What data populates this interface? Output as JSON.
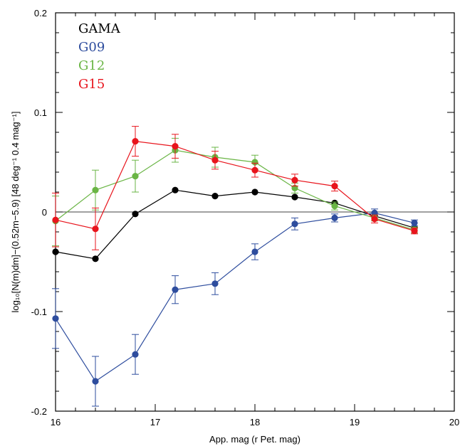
{
  "chart_data": {
    "type": "line",
    "title": "",
    "xlabel": "App. mag (r Pet. mag)",
    "ylabel": "log₁₀[N(m)dm]−(0.52m−5.9) [48 deg⁻¹ 0.4 mag⁻¹]",
    "xlim": [
      16,
      20
    ],
    "ylim": [
      -0.2,
      0.2
    ],
    "x_ticks": [
      16,
      17,
      18,
      19,
      20
    ],
    "x_tick_labels": [
      "16",
      "17",
      "18",
      "19",
      "20"
    ],
    "y_ticks": [
      -0.2,
      -0.1,
      0,
      0.1,
      0.2
    ],
    "y_tick_labels": [
      "-0.2",
      "-0.1",
      "0",
      "0.1",
      "0.2"
    ],
    "reference_line": 0,
    "legend_position": "top-left",
    "grid": false,
    "series": [
      {
        "name": "GAMA",
        "color": "#000000",
        "x": [
          16.0,
          16.4,
          16.8,
          17.2,
          17.6,
          18.0,
          18.4,
          18.8,
          19.2,
          19.6
        ],
        "y": [
          -0.04,
          -0.047,
          -0.002,
          0.022,
          0.016,
          0.02,
          0.015,
          0.009,
          -0.004,
          -0.016
        ],
        "err": [
          0,
          0,
          0,
          0,
          0,
          0,
          0,
          0,
          0,
          0
        ]
      },
      {
        "name": "G09",
        "color": "#2e4d9e",
        "x": [
          16.0,
          16.4,
          16.8,
          17.2,
          17.6,
          18.0,
          18.4,
          18.8,
          19.2,
          19.6
        ],
        "y": [
          -0.107,
          -0.17,
          -0.143,
          -0.078,
          -0.072,
          -0.04,
          -0.012,
          -0.006,
          -0.001,
          -0.011
        ],
        "err": [
          0.03,
          0.025,
          0.02,
          0.014,
          0.011,
          0.008,
          0.006,
          0.004,
          0.004,
          0.003
        ]
      },
      {
        "name": "G12",
        "color": "#6ab545",
        "x": [
          16.0,
          16.4,
          16.8,
          17.2,
          17.6,
          18.0,
          18.4,
          18.8,
          19.2,
          19.6
        ],
        "y": [
          -0.009,
          0.022,
          0.036,
          0.062,
          0.055,
          0.05,
          0.024,
          0.006,
          -0.006,
          -0.018
        ],
        "err": [
          0.025,
          0.02,
          0.016,
          0.012,
          0.01,
          0.007,
          0.005,
          0.004,
          0.003,
          0.003
        ]
      },
      {
        "name": "G15",
        "color": "#e8141c",
        "x": [
          16.0,
          16.4,
          16.8,
          17.2,
          17.6,
          18.0,
          18.4,
          18.8,
          19.2,
          19.6
        ],
        "y": [
          -0.008,
          -0.017,
          0.071,
          0.066,
          0.052,
          0.042,
          0.032,
          0.026,
          -0.007,
          -0.019
        ],
        "err": [
          0.027,
          0.021,
          0.015,
          0.012,
          0.009,
          0.007,
          0.006,
          0.005,
          0.004,
          0.003
        ]
      }
    ]
  }
}
